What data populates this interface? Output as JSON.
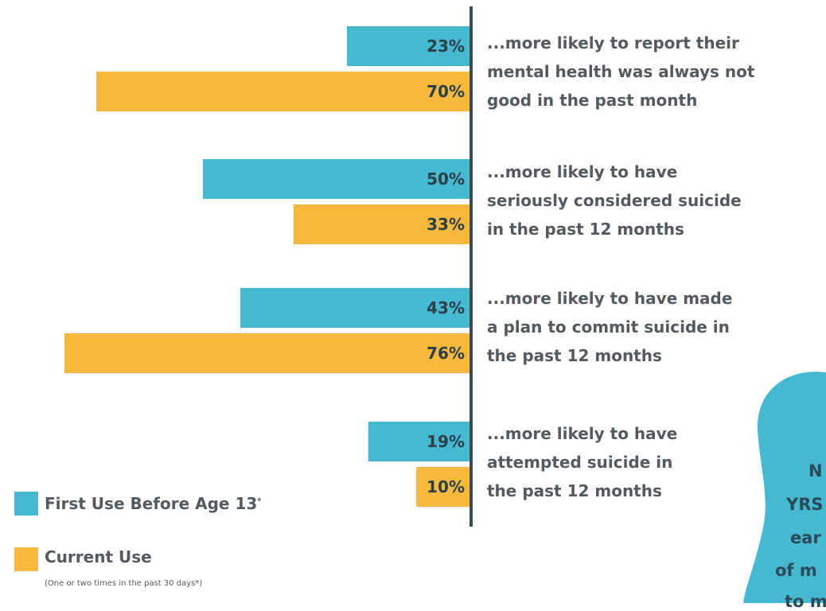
{
  "chart_data": {
    "type": "bar",
    "orientation": "horizontal",
    "axis_position": "right",
    "categories": [
      "...more likely to report their mental health was always not good in the past month",
      "...more likely to have seriously considered suicide in the past 12 months",
      "...more likely to have made a plan to commit suicide in the past 12 months",
      "...more likely to have attempted suicide in the past 12 months"
    ],
    "series": [
      {
        "name": "First Use Before Age 13",
        "color": "#45b9cf",
        "values": [
          23,
          50,
          43,
          19
        ]
      },
      {
        "name": "Current Use",
        "color": "#f7b93c",
        "values": [
          70,
          33,
          76,
          10
        ]
      }
    ],
    "value_labels": [
      [
        "23%",
        "70%"
      ],
      [
        "50%",
        "33%"
      ],
      [
        "43%",
        "76%"
      ],
      [
        "19%",
        "10%"
      ]
    ],
    "legend_placement": "bottom-left",
    "grid": false
  },
  "descriptions": [
    {
      "lines": [
        "...more likely to report their",
        "mental health was always not",
        "good in the past month"
      ]
    },
    {
      "lines": [
        "...more likely to have",
        "seriously considered suicide",
        "in the past 12 months"
      ]
    },
    {
      "lines": [
        "...more likely to have made",
        "a plan to commit suicide in",
        "the past 12 months"
      ]
    },
    {
      "lines": [
        "...more likely to have",
        "attempted suicide in",
        "the past 12 months"
      ]
    }
  ],
  "legend": {
    "first_use_label": "First Use Before Age 13",
    "first_use_marker": "*",
    "current_use_label": "Current Use",
    "current_use_note": "(One or two times in the past 30 days*)"
  },
  "callout": {
    "color": "#45b9cf",
    "text_lines": [
      "N",
      "YRS",
      "ear",
      "of m",
      "to m"
    ]
  }
}
